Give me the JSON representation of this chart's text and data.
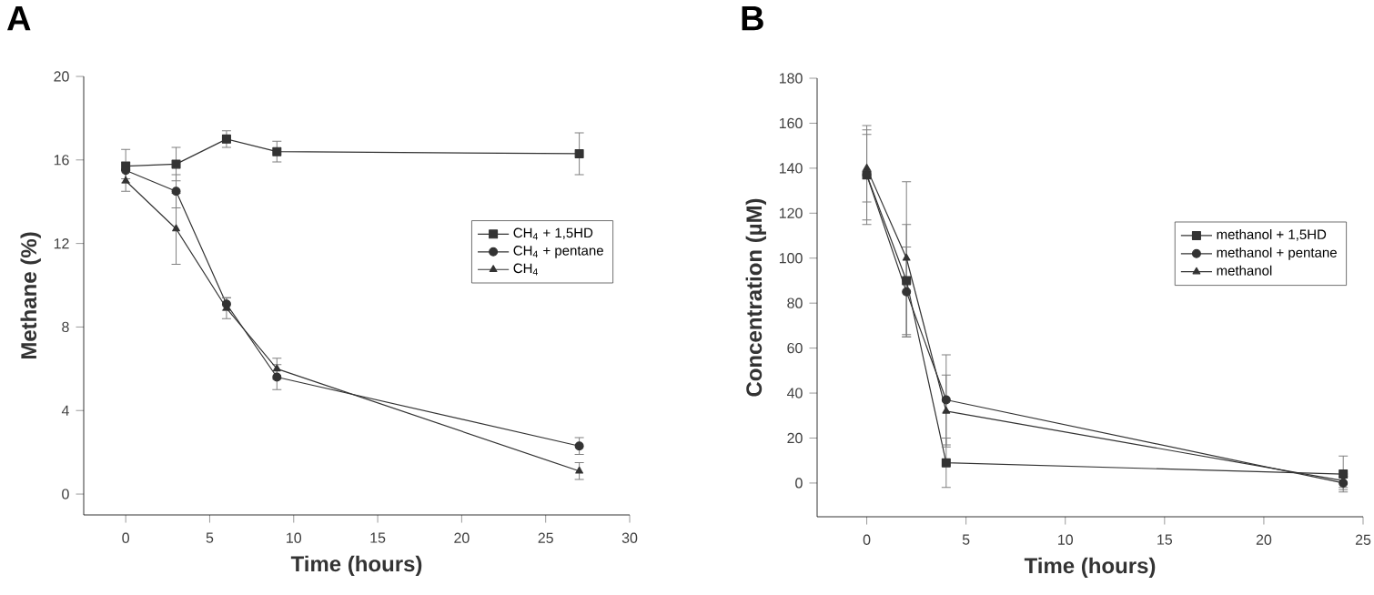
{
  "chart_data": [
    {
      "type": "line",
      "title": "A",
      "xlabel": "Time (hours)",
      "ylabel": "Methane (%)",
      "xlim": [
        -2.5,
        30
      ],
      "ylim": [
        -1,
        20
      ],
      "xticks": [
        0,
        5,
        10,
        15,
        20,
        25,
        30
      ],
      "yticks": [
        0,
        4,
        8,
        12,
        16,
        20
      ],
      "grid": false,
      "legend": "right",
      "x": [
        0,
        3,
        6,
        9,
        27
      ],
      "series": [
        {
          "name": "CH$_{4}$ + 1,5HD",
          "color": "#333333",
          "marker": "square",
          "values": [
            15.7,
            15.8,
            17.0,
            16.4,
            16.3
          ],
          "errors": [
            0.8,
            0.8,
            0.4,
            0.5,
            1.0
          ]
        },
        {
          "name": "CH$_{4}$ + pentane",
          "color": "#333333",
          "marker": "circle",
          "values": [
            15.5,
            14.5,
            9.1,
            5.6,
            2.3
          ],
          "errors": [
            0.4,
            0.8,
            0.3,
            0.6,
            0.4
          ]
        },
        {
          "name": "CH$_{4}$",
          "color": "#333333",
          "marker": "triangle",
          "values": [
            15.0,
            12.7,
            8.9,
            6.0,
            1.1
          ],
          "errors": [
            0.5,
            1.7,
            0.5,
            0.5,
            0.4
          ]
        }
      ]
    },
    {
      "type": "line",
      "title": "B",
      "xlabel": "Time (hours)",
      "ylabel": "Concentration (µM)",
      "xlim": [
        -2.5,
        25
      ],
      "ylim": [
        -15,
        180
      ],
      "xticks": [
        0,
        5,
        10,
        15,
        20,
        25
      ],
      "yticks": [
        0,
        20,
        40,
        60,
        80,
        100,
        120,
        140,
        160,
        180
      ],
      "grid": false,
      "legend": "right",
      "x": [
        0,
        2,
        4,
        24
      ],
      "series": [
        {
          "name": "methanol  + 1,5HD",
          "color": "#333333",
          "marker": "square",
          "values": [
            137,
            90,
            9,
            4
          ],
          "errors": [
            20,
            25,
            11,
            8
          ]
        },
        {
          "name": "methanol  + pentane",
          "color": "#333333",
          "marker": "circle",
          "values": [
            137,
            85,
            37,
            0
          ],
          "errors": [
            22,
            20,
            20,
            3
          ]
        },
        {
          "name": "methanol",
          "color": "#333333",
          "marker": "triangle",
          "values": [
            140,
            100,
            32,
            1
          ],
          "errors": [
            15,
            34,
            16,
            3
          ]
        }
      ]
    }
  ]
}
